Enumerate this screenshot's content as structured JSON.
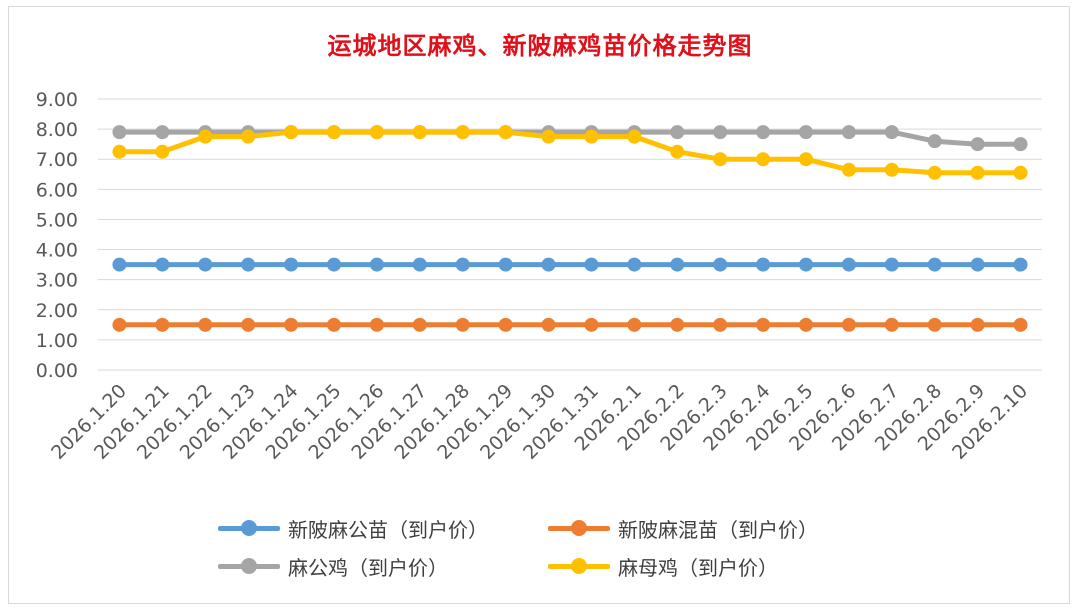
{
  "chart_data": {
    "type": "line",
    "title": "运城地区麻鸡、新陂麻鸡苗价格走势图",
    "xlabel": "",
    "ylabel": "",
    "ylim": [
      0,
      9
    ],
    "y_ticks": [
      "0.00",
      "1.00",
      "2.00",
      "3.00",
      "4.00",
      "5.00",
      "6.00",
      "7.00",
      "8.00",
      "9.00"
    ],
    "grid": true,
    "legend_position": "bottom",
    "categories": [
      "2026.1.20",
      "2026.1.21",
      "2026.1.22",
      "2026.1.23",
      "2026.1.24",
      "2026.1.25",
      "2026.1.26",
      "2026.1.27",
      "2026.1.28",
      "2026.1.29",
      "2026.1.30",
      "2026.1.31",
      "2026.2.1",
      "2026.2.2",
      "2026.2.3",
      "2026.2.4",
      "2026.2.5",
      "2026.2.6",
      "2026.2.7",
      "2026.2.8",
      "2026.2.9",
      "2026.2.10"
    ],
    "series": [
      {
        "name": "新陂麻公苗（到户价）",
        "color": "#5b9bd5",
        "values": [
          3.5,
          3.5,
          3.5,
          3.5,
          3.5,
          3.5,
          3.5,
          3.5,
          3.5,
          3.5,
          3.5,
          3.5,
          3.5,
          3.5,
          3.5,
          3.5,
          3.5,
          3.5,
          3.5,
          3.5,
          3.5,
          3.5
        ]
      },
      {
        "name": "新陂麻混苗（到户价）",
        "color": "#ed7d31",
        "values": [
          1.5,
          1.5,
          1.5,
          1.5,
          1.5,
          1.5,
          1.5,
          1.5,
          1.5,
          1.5,
          1.5,
          1.5,
          1.5,
          1.5,
          1.5,
          1.5,
          1.5,
          1.5,
          1.5,
          1.5,
          1.5,
          1.5
        ]
      },
      {
        "name": "麻公鸡（到户价）",
        "color": "#a5a5a5",
        "values": [
          7.9,
          7.9,
          7.9,
          7.9,
          7.9,
          7.9,
          7.9,
          7.9,
          7.9,
          7.9,
          7.9,
          7.9,
          7.9,
          7.9,
          7.9,
          7.9,
          7.9,
          7.9,
          7.9,
          7.6,
          7.5,
          7.5
        ]
      },
      {
        "name": "麻母鸡（到户价）",
        "color": "#ffc000",
        "values": [
          7.25,
          7.25,
          7.75,
          7.75,
          7.9,
          7.9,
          7.9,
          7.9,
          7.9,
          7.9,
          7.75,
          7.75,
          7.75,
          7.25,
          7.0,
          7.0,
          7.0,
          6.65,
          6.65,
          6.55,
          6.55,
          6.55
        ]
      }
    ]
  }
}
